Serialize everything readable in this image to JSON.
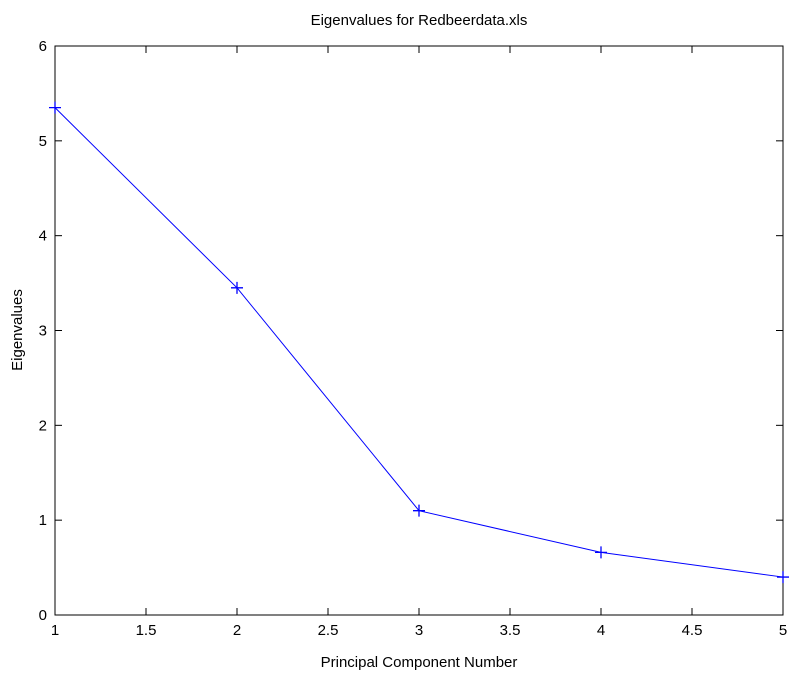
{
  "chart_data": {
    "type": "line",
    "title": "Eigenvalues for Redbeerdata.xls",
    "x_label": "Principal Component Number",
    "y_label": "Eigenvalues",
    "x": [
      1,
      2,
      3,
      4,
      5
    ],
    "values": [
      5.35,
      3.45,
      1.1,
      0.66,
      0.4
    ],
    "color": "#0000ff",
    "marker": "+",
    "xlim": [
      1,
      5
    ],
    "xticks": [
      1,
      1.5,
      2,
      2.5,
      3,
      3.5,
      4,
      4.5,
      5
    ],
    "ylim": [
      0,
      6
    ],
    "yticks": [
      0,
      1,
      2,
      3,
      4,
      5,
      6
    ],
    "grid": false
  }
}
